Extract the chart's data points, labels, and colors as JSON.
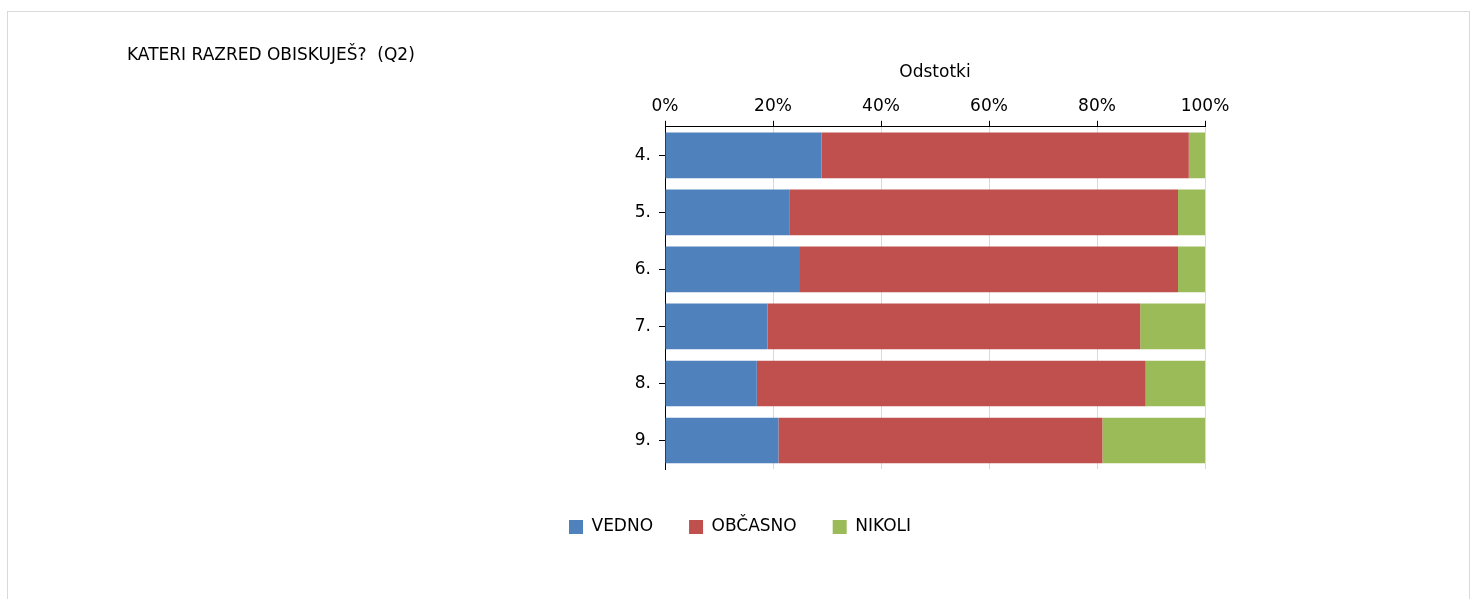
{
  "chart_data": {
    "type": "bar",
    "title": "KATERI RAZRED OBISKUJEŠ?  (Q2)",
    "xlabel": "Odstotki",
    "orientation": "horizontal",
    "stacked": true,
    "categories": [
      "4.",
      "5.",
      "6.",
      "7.",
      "8.",
      "9."
    ],
    "series": [
      {
        "name": "VEDNO",
        "color": "#4f81bd",
        "values": [
          29,
          23,
          25,
          19,
          17,
          21
        ]
      },
      {
        "name": "OBČASNO",
        "color": "#c0504d",
        "values": [
          68,
          72,
          70,
          69,
          72,
          60
        ]
      },
      {
        "name": "NIKOLI",
        "color": "#9bbb59",
        "values": [
          3,
          5,
          5,
          12,
          11,
          19
        ]
      }
    ],
    "xlim": [
      0,
      100
    ],
    "xticks": [
      {
        "value": 0,
        "label": "0%"
      },
      {
        "value": 20,
        "label": "20%"
      },
      {
        "value": 40,
        "label": "40%"
      },
      {
        "value": 60,
        "label": "60%"
      },
      {
        "value": 80,
        "label": "80%"
      },
      {
        "value": 100,
        "label": "100%"
      }
    ],
    "grid": "x",
    "legend": "bottom"
  }
}
